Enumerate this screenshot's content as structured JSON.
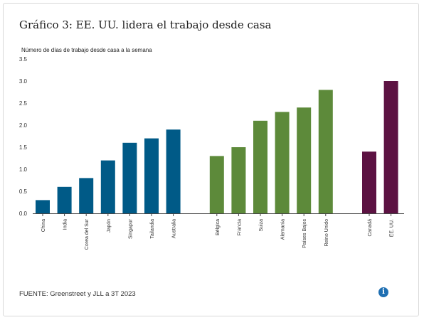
{
  "chart_data": {
    "type": "bar",
    "title": "Gráfico 3: EE. UU. lidera el trabajo desde casa",
    "ylabel": "Número de días de trabajo desde casa a la semana",
    "xlabel": "",
    "ylim": [
      0,
      3.5
    ],
    "yticks": [
      "0.0",
      "0.5",
      "1.0",
      "1.5",
      "2.0",
      "2.5",
      "3.0",
      "3.5"
    ],
    "grid": false,
    "groups": [
      {
        "color": "#005a87",
        "categories": [
          "China",
          "India",
          "Corea del Sur",
          "Japón",
          "Singapur",
          "Tailandia",
          "Australia"
        ],
        "values": [
          0.3,
          0.6,
          0.8,
          1.2,
          1.6,
          1.7,
          1.9
        ]
      },
      {
        "color": "#5d8a3a",
        "categories": [
          "Bélgica",
          "Francia",
          "Suiza",
          "Alemania",
          "Países Bajos",
          "Reino Unido"
        ],
        "values": [
          1.3,
          1.5,
          2.1,
          2.3,
          2.4,
          2.8
        ]
      },
      {
        "color": "#5c1242",
        "categories": [
          "Canadá",
          "EE. UU."
        ],
        "values": [
          1.4,
          3.0
        ]
      }
    ]
  },
  "source": "FUENTE: Greenstreet y JLL a 3T 2023",
  "info_icon": "info-icon"
}
